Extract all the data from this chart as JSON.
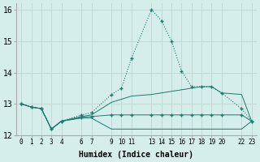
{
  "xlabel": "Humidex (Indice chaleur)",
  "bg_color": "#d6eeeb",
  "grid_color": "#c2d8d5",
  "line_color": "#1a7a6e",
  "x_ticks": [
    0,
    1,
    2,
    3,
    4,
    6,
    7,
    9,
    10,
    11,
    13,
    14,
    15,
    16,
    17,
    18,
    19,
    20,
    22,
    23
  ],
  "peak_x": [
    0,
    1,
    2,
    3,
    4,
    6,
    7,
    9,
    10,
    11,
    13,
    14,
    15,
    16,
    17,
    18,
    19,
    20,
    22,
    23
  ],
  "peak_y": [
    13.0,
    12.9,
    12.85,
    12.2,
    12.45,
    12.65,
    12.72,
    13.3,
    13.5,
    14.45,
    16.0,
    15.65,
    15.0,
    14.05,
    13.55,
    13.55,
    13.55,
    13.35,
    12.85,
    12.45
  ],
  "mid_x": [
    0,
    1,
    2,
    3,
    4,
    6,
    7,
    9,
    10,
    11,
    13,
    14,
    15,
    16,
    17,
    18,
    19,
    20,
    22,
    23
  ],
  "mid_y": [
    13.0,
    12.9,
    12.85,
    12.2,
    12.45,
    12.6,
    12.65,
    13.05,
    13.15,
    13.25,
    13.3,
    13.35,
    13.4,
    13.45,
    13.5,
    13.55,
    13.55,
    13.35,
    13.3,
    12.45
  ],
  "low_x": [
    0,
    1,
    2,
    3,
    4,
    6,
    7,
    9,
    10,
    11,
    13,
    14,
    15,
    16,
    17,
    18,
    19,
    20,
    22,
    23
  ],
  "low_y": [
    13.0,
    12.9,
    12.85,
    12.2,
    12.45,
    12.57,
    12.6,
    12.65,
    12.65,
    12.65,
    12.65,
    12.65,
    12.65,
    12.65,
    12.65,
    12.65,
    12.65,
    12.65,
    12.65,
    12.45
  ],
  "flat_x": [
    0,
    1,
    2,
    3,
    4,
    6,
    7,
    9,
    10,
    11,
    13,
    14,
    15,
    16,
    17,
    18,
    19,
    20,
    22,
    23
  ],
  "flat_y": [
    13.0,
    12.9,
    12.85,
    12.2,
    12.45,
    12.55,
    12.55,
    12.2,
    12.2,
    12.2,
    12.2,
    12.2,
    12.2,
    12.2,
    12.2,
    12.2,
    12.2,
    12.2,
    12.2,
    12.45
  ],
  "ylim": [
    12.0,
    16.2
  ],
  "yticks": [
    12,
    13,
    14,
    15,
    16
  ]
}
